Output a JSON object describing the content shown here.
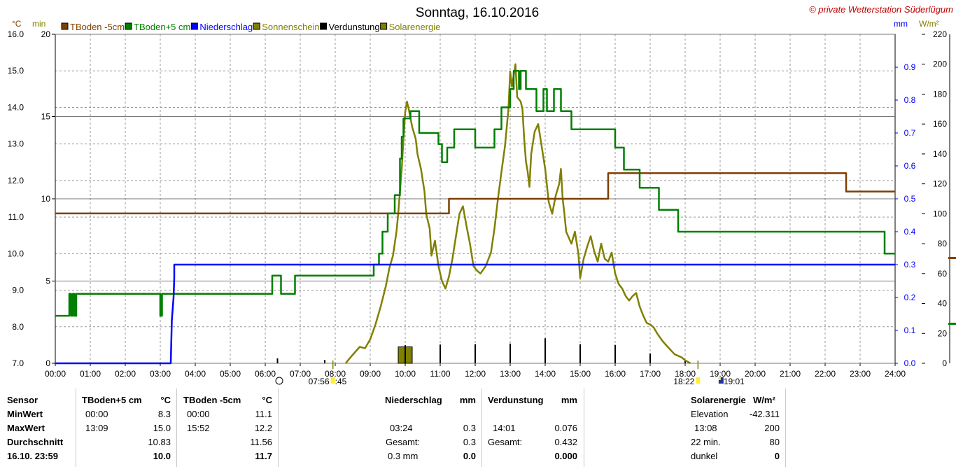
{
  "chart_data": {
    "type": "line",
    "title": "Sonntag, 16.10.2016",
    "watermark": "© private Wetterstation Süderlügum",
    "x_ticks": [
      "00:00",
      "01:00",
      "02:00",
      "03:00",
      "04:00",
      "05:00",
      "06:00",
      "07:00",
      "08:00",
      "09:00",
      "10:00",
      "11:00",
      "12:00",
      "13:00",
      "14:00",
      "15:00",
      "16:00",
      "17:00",
      "18:00",
      "19:00",
      "20:00",
      "21:00",
      "22:00",
      "23:00",
      "24:00"
    ],
    "sun_markers": {
      "sunrise": "07:56",
      "sunrise_partial": ":45",
      "sunset": "18:22",
      "moon": "19:01"
    },
    "axes": {
      "temp": {
        "unit": "°C",
        "range": [
          7.0,
          16.0
        ],
        "ticks": [
          "7.0",
          "8.0",
          "9.0",
          "10.0",
          "11.0",
          "12.0",
          "13.0",
          "14.0",
          "15.0",
          "16.0"
        ]
      },
      "min": {
        "unit": "min",
        "range": [
          0,
          20
        ],
        "ticks": [
          "0",
          "5",
          "10",
          "15",
          "20"
        ]
      },
      "mm": {
        "unit": "mm",
        "range": [
          0.0,
          1.0
        ],
        "ticks": [
          "0.0",
          "0.1",
          "0.2",
          "0.3",
          "0.4",
          "0.5",
          "0.6",
          "0.7",
          "0.8",
          "0.9"
        ]
      },
      "wm2": {
        "unit": "W/m²",
        "range": [
          0,
          220
        ],
        "ticks": [
          "0",
          "20",
          "40",
          "60",
          "80",
          "100",
          "120",
          "140",
          "160",
          "180",
          "200",
          "220"
        ]
      }
    },
    "grid": true,
    "legend": [
      {
        "name": "TBoden -5cm",
        "color": "#7f3f00"
      },
      {
        "name": "TBoden+5 cm",
        "color": "#007f00"
      },
      {
        "name": "Niederschlag",
        "color": "#0000ff"
      },
      {
        "name": "Sonnenschein",
        "color": "#808000"
      },
      {
        "name": "Verdunstung",
        "color": "#000000"
      },
      {
        "name": "Solarenergie",
        "color": "#808000"
      }
    ],
    "series": [
      {
        "name": "TBoden -5cm",
        "axis": "temp",
        "color": "#7f3f00",
        "points": [
          [
            0,
            11.1
          ],
          [
            11.25,
            11.1
          ],
          [
            11.25,
            11.5
          ],
          [
            15.8,
            11.5
          ],
          [
            15.8,
            12.2
          ],
          [
            22.6,
            12.2
          ],
          [
            22.6,
            11.7
          ],
          [
            24,
            11.7
          ]
        ]
      },
      {
        "name": "TBoden+5 cm",
        "axis": "temp",
        "color": "#007f00",
        "points": [
          [
            0,
            8.3
          ],
          [
            0.4,
            8.3
          ],
          [
            0.4,
            8.9
          ],
          [
            0.45,
            8.9
          ],
          [
            0.45,
            8.3
          ],
          [
            0.5,
            8.3
          ],
          [
            0.5,
            8.9
          ],
          [
            0.55,
            8.9
          ],
          [
            0.55,
            8.3
          ],
          [
            0.6,
            8.3
          ],
          [
            0.6,
            8.9
          ],
          [
            3.0,
            8.9
          ],
          [
            3.0,
            8.3
          ],
          [
            3.05,
            8.3
          ],
          [
            3.05,
            8.9
          ],
          [
            6.2,
            8.9
          ],
          [
            6.2,
            9.4
          ],
          [
            6.45,
            9.4
          ],
          [
            6.45,
            8.9
          ],
          [
            6.85,
            8.9
          ],
          [
            6.85,
            9.4
          ],
          [
            9.1,
            9.4
          ],
          [
            9.1,
            9.7
          ],
          [
            9.25,
            9.7
          ],
          [
            9.25,
            10.0
          ],
          [
            9.35,
            10.0
          ],
          [
            9.35,
            10.6
          ],
          [
            9.5,
            10.6
          ],
          [
            9.5,
            11.1
          ],
          [
            9.7,
            11.1
          ],
          [
            9.7,
            11.6
          ],
          [
            9.85,
            11.6
          ],
          [
            9.85,
            12.6
          ],
          [
            9.9,
            12.6
          ],
          [
            9.9,
            13.2
          ],
          [
            9.95,
            13.2
          ],
          [
            9.95,
            13.7
          ],
          [
            10.15,
            13.7
          ],
          [
            10.15,
            13.9
          ],
          [
            10.4,
            13.9
          ],
          [
            10.4,
            13.3
          ],
          [
            10.95,
            13.3
          ],
          [
            10.95,
            13.0
          ],
          [
            11.05,
            13.0
          ],
          [
            11.05,
            12.5
          ],
          [
            11.2,
            12.5
          ],
          [
            11.2,
            12.9
          ],
          [
            11.4,
            12.9
          ],
          [
            11.4,
            13.4
          ],
          [
            12.0,
            13.4
          ],
          [
            12.0,
            12.9
          ],
          [
            12.55,
            12.9
          ],
          [
            12.55,
            13.4
          ],
          [
            12.75,
            13.4
          ],
          [
            12.75,
            14.0
          ],
          [
            13.0,
            14.0
          ],
          [
            13.0,
            14.5
          ],
          [
            13.1,
            14.5
          ],
          [
            13.1,
            15.0
          ],
          [
            13.25,
            15.0
          ],
          [
            13.25,
            14.5
          ],
          [
            13.3,
            14.5
          ],
          [
            13.3,
            15.0
          ],
          [
            13.45,
            15.0
          ],
          [
            13.45,
            14.5
          ],
          [
            13.75,
            14.5
          ],
          [
            13.75,
            13.9
          ],
          [
            13.95,
            13.9
          ],
          [
            13.95,
            14.5
          ],
          [
            14.05,
            14.5
          ],
          [
            14.05,
            13.9
          ],
          [
            14.25,
            13.9
          ],
          [
            14.25,
            14.5
          ],
          [
            14.45,
            14.5
          ],
          [
            14.45,
            13.9
          ],
          [
            14.75,
            13.9
          ],
          [
            14.75,
            13.4
          ],
          [
            16.0,
            13.4
          ],
          [
            16.0,
            12.9
          ],
          [
            16.25,
            12.9
          ],
          [
            16.25,
            12.3
          ],
          [
            16.7,
            12.3
          ],
          [
            16.7,
            11.8
          ],
          [
            17.25,
            11.8
          ],
          [
            17.25,
            11.2
          ],
          [
            17.8,
            11.2
          ],
          [
            17.8,
            10.6
          ],
          [
            23.7,
            10.6
          ],
          [
            23.7,
            10.0
          ],
          [
            24,
            10.0
          ]
        ]
      },
      {
        "name": "Niederschlag",
        "axis": "mm",
        "color": "#0000ff",
        "points": [
          [
            0,
            0.0
          ],
          [
            3.3,
            0.0
          ],
          [
            3.33,
            0.13
          ],
          [
            3.38,
            0.2
          ],
          [
            3.4,
            0.26
          ],
          [
            3.4,
            0.3
          ],
          [
            24,
            0.3
          ]
        ]
      },
      {
        "name": "Solarenergie",
        "axis": "wm2",
        "color": "#808000",
        "points": [
          [
            8.3,
            0
          ],
          [
            8.4,
            3
          ],
          [
            8.55,
            7
          ],
          [
            8.7,
            11
          ],
          [
            8.85,
            10
          ],
          [
            9.0,
            16
          ],
          [
            9.15,
            26
          ],
          [
            9.3,
            38
          ],
          [
            9.45,
            52
          ],
          [
            9.55,
            64
          ],
          [
            9.65,
            72
          ],
          [
            9.75,
            88
          ],
          [
            9.8,
            100
          ],
          [
            9.9,
            130
          ],
          [
            9.95,
            150
          ],
          [
            10.0,
            168
          ],
          [
            10.05,
            175
          ],
          [
            10.1,
            170
          ],
          [
            10.2,
            158
          ],
          [
            10.3,
            150
          ],
          [
            10.35,
            140
          ],
          [
            10.45,
            130
          ],
          [
            10.55,
            115
          ],
          [
            10.6,
            100
          ],
          [
            10.7,
            90
          ],
          [
            10.75,
            72
          ],
          [
            10.85,
            82
          ],
          [
            10.95,
            65
          ],
          [
            11.05,
            55
          ],
          [
            11.15,
            50
          ],
          [
            11.25,
            58
          ],
          [
            11.35,
            70
          ],
          [
            11.45,
            85
          ],
          [
            11.55,
            100
          ],
          [
            11.65,
            105
          ],
          [
            11.75,
            92
          ],
          [
            11.85,
            80
          ],
          [
            11.95,
            65
          ],
          [
            12.05,
            62
          ],
          [
            12.15,
            60
          ],
          [
            12.3,
            65
          ],
          [
            12.45,
            74
          ],
          [
            12.55,
            90
          ],
          [
            12.65,
            110
          ],
          [
            12.75,
            128
          ],
          [
            12.85,
            145
          ],
          [
            12.95,
            170
          ],
          [
            13.0,
            195
          ],
          [
            13.05,
            185
          ],
          [
            13.15,
            200
          ],
          [
            13.2,
            178
          ],
          [
            13.3,
            175
          ],
          [
            13.35,
            170
          ],
          [
            13.4,
            150
          ],
          [
            13.45,
            135
          ],
          [
            13.5,
            128
          ],
          [
            13.55,
            118
          ],
          [
            13.6,
            140
          ],
          [
            13.7,
            155
          ],
          [
            13.8,
            160
          ],
          [
            13.9,
            145
          ],
          [
            14.0,
            130
          ],
          [
            14.1,
            108
          ],
          [
            14.2,
            100
          ],
          [
            14.3,
            112
          ],
          [
            14.4,
            120
          ],
          [
            14.45,
            130
          ],
          [
            14.5,
            110
          ],
          [
            14.55,
            100
          ],
          [
            14.6,
            88
          ],
          [
            14.75,
            80
          ],
          [
            14.85,
            88
          ],
          [
            14.95,
            73
          ],
          [
            15.0,
            57
          ],
          [
            15.1,
            70
          ],
          [
            15.2,
            78
          ],
          [
            15.3,
            85
          ],
          [
            15.4,
            75
          ],
          [
            15.5,
            68
          ],
          [
            15.6,
            80
          ],
          [
            15.7,
            70
          ],
          [
            15.8,
            68
          ],
          [
            15.9,
            74
          ],
          [
            16.0,
            60
          ],
          [
            16.1,
            53
          ],
          [
            16.2,
            50
          ],
          [
            16.3,
            45
          ],
          [
            16.4,
            42
          ],
          [
            16.5,
            45
          ],
          [
            16.6,
            47
          ],
          [
            16.7,
            38
          ],
          [
            16.8,
            32
          ],
          [
            16.9,
            27
          ],
          [
            17.0,
            26
          ],
          [
            17.1,
            24
          ],
          [
            17.2,
            20
          ],
          [
            17.35,
            15
          ],
          [
            17.5,
            11
          ],
          [
            17.7,
            6
          ],
          [
            17.9,
            4
          ],
          [
            18.0,
            2
          ],
          [
            18.15,
            0
          ]
        ]
      },
      {
        "name": "Sonnenschein",
        "axis": "min",
        "color": "#808000",
        "type": "bar",
        "values": [
          [
            9.8,
            10.2,
            1.0
          ]
        ]
      },
      {
        "name": "Verdunstung",
        "axis": "mm",
        "color": "#000000",
        "type": "bar",
        "values": [
          [
            6.35,
            0.015
          ],
          [
            7.7,
            0.01
          ],
          [
            10.0,
            0.055
          ],
          [
            11.0,
            0.057
          ],
          [
            12.0,
            0.058
          ],
          [
            13.0,
            0.06
          ],
          [
            14.0,
            0.076
          ],
          [
            15.0,
            0.058
          ],
          [
            16.0,
            0.056
          ],
          [
            17.0,
            0.03
          ],
          [
            18.0,
            0.01
          ]
        ]
      }
    ]
  },
  "table": {
    "c1": {
      "header": "Sensor",
      "rows": [
        "MinWert",
        "MaxWert",
        "Durchschnitt",
        "16.10. 23:59"
      ]
    },
    "c2": {
      "title": "TBoden+5 cm",
      "unit": "°C",
      "min_time": "00:00",
      "min": "8.3",
      "max_time": "13:09",
      "max": "15.0",
      "avg": "10.83",
      "last": "10.0"
    },
    "c3": {
      "title": "TBoden -5cm",
      "unit": "°C",
      "min_time": "00:00",
      "min": "11.1",
      "max_time": "15:52",
      "max": "12.2",
      "avg": "11.56",
      "last": "11.7"
    },
    "c4": {
      "title": "Niederschlag",
      "unit": "mm",
      "max_time": "03:24",
      "max": "0.3",
      "total_label": "Gesamt:",
      "total": "0.3",
      "hour_label": "0.3 mm",
      "hour": "0.0"
    },
    "c5": {
      "title": "Verdunstung",
      "unit": "mm",
      "max_time": "14:01",
      "max": "0.076",
      "total_label": "Gesamt:",
      "total": "0.432",
      "last": "0.000"
    },
    "c6": {
      "title": "Solarenergie",
      "unit": "W/m²",
      "elev_label": "Elevation",
      "elev": "-42.311",
      "max_time": "13:08",
      "max": "200",
      "mins_label": "22 min.",
      "mins": "80",
      "dark_label": "dunkel",
      "dark": "0"
    }
  }
}
